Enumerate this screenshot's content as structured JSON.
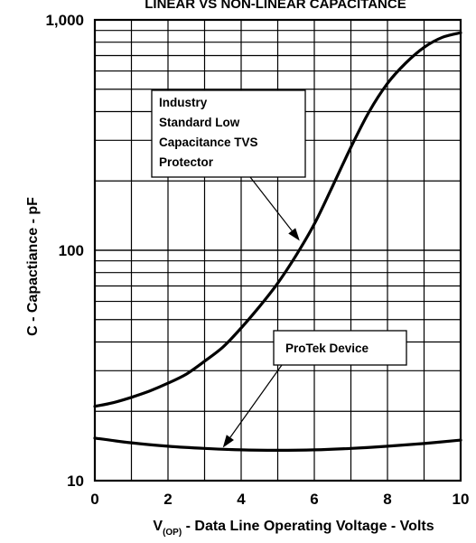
{
  "chart_data": {
    "type": "line",
    "title": "LINEAR VS NON-LINEAR CAPACITANCE",
    "xlabel": "V",
    "xlabel_sub": "(OP)",
    "xlabel_rest": " - Data Line Operating Voltage - Volts",
    "ylabel": "C - Capactiance - pF",
    "xlim": [
      0,
      10
    ],
    "ylim": [
      10,
      1000
    ],
    "yscale": "log",
    "grid": true,
    "x_ticks": [
      0,
      2,
      4,
      6,
      8,
      10
    ],
    "x_tick_labels": [
      "0",
      "2",
      "4",
      "6",
      "8",
      "10"
    ],
    "y_ticks": [
      10,
      100,
      1000
    ],
    "y_tick_labels": [
      "10",
      "100",
      "1,000"
    ],
    "series": [
      {
        "name": "Industry Standard Low Capacitance TVS Protector",
        "x": [
          0,
          0.5,
          1,
          1.5,
          2,
          2.5,
          3,
          3.5,
          4,
          4.5,
          5,
          5.5,
          6,
          6.5,
          7,
          7.5,
          8,
          8.5,
          9,
          9.5,
          10
        ],
        "y": [
          21,
          21.8,
          23,
          24.5,
          26.5,
          29,
          33,
          38,
          46,
          57,
          72,
          95,
          130,
          190,
          280,
          400,
          530,
          650,
          760,
          840,
          880
        ]
      },
      {
        "name": "ProTek Device",
        "x": [
          0,
          1,
          2,
          3,
          4,
          5,
          6,
          7,
          8,
          9,
          10
        ],
        "y": [
          15.3,
          14.6,
          14.1,
          13.8,
          13.6,
          13.55,
          13.6,
          13.8,
          14.1,
          14.5,
          15.0
        ]
      }
    ],
    "annotations": [
      {
        "lines": [
          "Industry",
          "Standard Low",
          "Capacitance TVS",
          "Protector"
        ],
        "points_to_series": 0,
        "arrow_x": 5.6,
        "arrow_y": 110
      },
      {
        "lines": [
          "ProTek Device"
        ],
        "points_to_series": 1,
        "arrow_x": 3.5,
        "arrow_y": 13.9
      }
    ]
  }
}
